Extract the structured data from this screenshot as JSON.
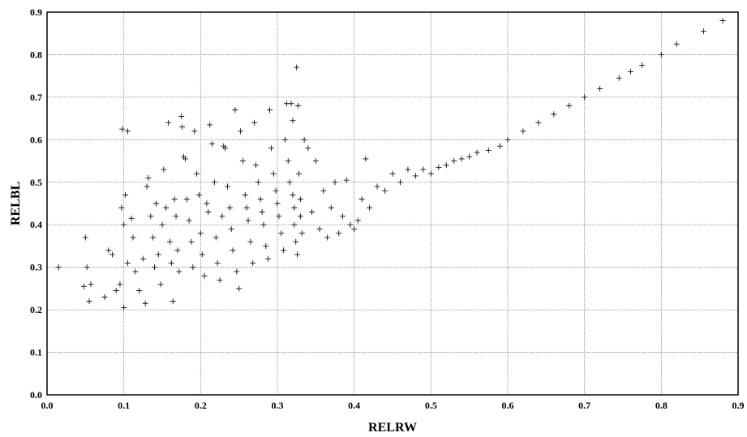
{
  "chart_data": {
    "type": "scatter",
    "title": "",
    "xlabel": "RELRW",
    "ylabel": "RELBL",
    "xlim": [
      0.0,
      0.9
    ],
    "ylim": [
      0.0,
      0.9
    ],
    "xticks": [
      "0.0",
      "0.1",
      "0.2",
      "0.3",
      "0.4",
      "0.5",
      "0.6",
      "0.7",
      "0.8",
      "0.9"
    ],
    "yticks": [
      "0.0",
      "0.1",
      "0.2",
      "0.3",
      "0.4",
      "0.5",
      "0.6",
      "0.7",
      "0.8",
      "0.9"
    ],
    "grid": true,
    "marker": "+",
    "marker_color": "#111111",
    "series": [
      {
        "points": [
          [
            0.015,
            0.3
          ],
          [
            0.048,
            0.255
          ],
          [
            0.05,
            0.37
          ],
          [
            0.052,
            0.3
          ],
          [
            0.055,
            0.22
          ],
          [
            0.057,
            0.26
          ],
          [
            0.075,
            0.23
          ],
          [
            0.08,
            0.34
          ],
          [
            0.085,
            0.33
          ],
          [
            0.09,
            0.245
          ],
          [
            0.095,
            0.26
          ],
          [
            0.097,
            0.44
          ],
          [
            0.1,
            0.205
          ],
          [
            0.1,
            0.4
          ],
          [
            0.102,
            0.47
          ],
          [
            0.105,
            0.62
          ],
          [
            0.098,
            0.625
          ],
          [
            0.105,
            0.31
          ],
          [
            0.11,
            0.415
          ],
          [
            0.112,
            0.37
          ],
          [
            0.115,
            0.29
          ],
          [
            0.12,
            0.245
          ],
          [
            0.125,
            0.32
          ],
          [
            0.128,
            0.215
          ],
          [
            0.13,
            0.49
          ],
          [
            0.132,
            0.51
          ],
          [
            0.135,
            0.42
          ],
          [
            0.138,
            0.37
          ],
          [
            0.14,
            0.3
          ],
          [
            0.142,
            0.45
          ],
          [
            0.145,
            0.33
          ],
          [
            0.148,
            0.26
          ],
          [
            0.15,
            0.4
          ],
          [
            0.152,
            0.53
          ],
          [
            0.155,
            0.44
          ],
          [
            0.158,
            0.64
          ],
          [
            0.16,
            0.36
          ],
          [
            0.162,
            0.31
          ],
          [
            0.164,
            0.22
          ],
          [
            0.166,
            0.46
          ],
          [
            0.168,
            0.42
          ],
          [
            0.17,
            0.34
          ],
          [
            0.172,
            0.29
          ],
          [
            0.175,
            0.655
          ],
          [
            0.176,
            0.63
          ],
          [
            0.178,
            0.56
          ],
          [
            0.18,
            0.555
          ],
          [
            0.182,
            0.46
          ],
          [
            0.185,
            0.41
          ],
          [
            0.188,
            0.36
          ],
          [
            0.19,
            0.3
          ],
          [
            0.192,
            0.62
          ],
          [
            0.195,
            0.52
          ],
          [
            0.198,
            0.47
          ],
          [
            0.2,
            0.38
          ],
          [
            0.202,
            0.33
          ],
          [
            0.205,
            0.28
          ],
          [
            0.208,
            0.45
          ],
          [
            0.21,
            0.43
          ],
          [
            0.212,
            0.635
          ],
          [
            0.215,
            0.59
          ],
          [
            0.218,
            0.5
          ],
          [
            0.22,
            0.37
          ],
          [
            0.222,
            0.31
          ],
          [
            0.225,
            0.27
          ],
          [
            0.228,
            0.42
          ],
          [
            0.23,
            0.585
          ],
          [
            0.232,
            0.58
          ],
          [
            0.235,
            0.49
          ],
          [
            0.238,
            0.44
          ],
          [
            0.24,
            0.39
          ],
          [
            0.242,
            0.34
          ],
          [
            0.245,
            0.67
          ],
          [
            0.247,
            0.29
          ],
          [
            0.25,
            0.25
          ],
          [
            0.252,
            0.62
          ],
          [
            0.255,
            0.55
          ],
          [
            0.258,
            0.47
          ],
          [
            0.26,
            0.44
          ],
          [
            0.262,
            0.41
          ],
          [
            0.265,
            0.36
          ],
          [
            0.268,
            0.31
          ],
          [
            0.27,
            0.64
          ],
          [
            0.272,
            0.54
          ],
          [
            0.275,
            0.5
          ],
          [
            0.278,
            0.46
          ],
          [
            0.28,
            0.43
          ],
          [
            0.282,
            0.4
          ],
          [
            0.285,
            0.35
          ],
          [
            0.288,
            0.32
          ],
          [
            0.29,
            0.67
          ],
          [
            0.292,
            0.58
          ],
          [
            0.295,
            0.52
          ],
          [
            0.298,
            0.48
          ],
          [
            0.3,
            0.45
          ],
          [
            0.302,
            0.42
          ],
          [
            0.305,
            0.38
          ],
          [
            0.308,
            0.34
          ],
          [
            0.31,
            0.6
          ],
          [
            0.312,
            0.685
          ],
          [
            0.314,
            0.55
          ],
          [
            0.316,
            0.5
          ],
          [
            0.318,
            0.685
          ],
          [
            0.32,
            0.645
          ],
          [
            0.32,
            0.47
          ],
          [
            0.322,
            0.44
          ],
          [
            0.322,
            0.4
          ],
          [
            0.324,
            0.36
          ],
          [
            0.325,
            0.77
          ],
          [
            0.326,
            0.33
          ],
          [
            0.327,
            0.68
          ],
          [
            0.328,
            0.52
          ],
          [
            0.33,
            0.46
          ],
          [
            0.33,
            0.42
          ],
          [
            0.332,
            0.38
          ],
          [
            0.335,
            0.6
          ],
          [
            0.34,
            0.58
          ],
          [
            0.345,
            0.43
          ],
          [
            0.35,
            0.55
          ],
          [
            0.355,
            0.39
          ],
          [
            0.36,
            0.48
          ],
          [
            0.365,
            0.37
          ],
          [
            0.37,
            0.44
          ],
          [
            0.375,
            0.5
          ],
          [
            0.38,
            0.38
          ],
          [
            0.385,
            0.42
          ],
          [
            0.39,
            0.505
          ],
          [
            0.395,
            0.4
          ],
          [
            0.4,
            0.39
          ],
          [
            0.405,
            0.41
          ],
          [
            0.41,
            0.46
          ],
          [
            0.415,
            0.555
          ],
          [
            0.42,
            0.44
          ],
          [
            0.43,
            0.49
          ],
          [
            0.44,
            0.48
          ],
          [
            0.45,
            0.52
          ],
          [
            0.46,
            0.5
          ],
          [
            0.47,
            0.53
          ],
          [
            0.48,
            0.515
          ],
          [
            0.49,
            0.53
          ],
          [
            0.5,
            0.52
          ],
          [
            0.51,
            0.535
          ],
          [
            0.52,
            0.54
          ],
          [
            0.53,
            0.55
          ],
          [
            0.54,
            0.555
          ],
          [
            0.55,
            0.56
          ],
          [
            0.56,
            0.57
          ],
          [
            0.575,
            0.575
          ],
          [
            0.59,
            0.585
          ],
          [
            0.6,
            0.6
          ],
          [
            0.62,
            0.62
          ],
          [
            0.64,
            0.64
          ],
          [
            0.66,
            0.66
          ],
          [
            0.68,
            0.68
          ],
          [
            0.7,
            0.7
          ],
          [
            0.72,
            0.72
          ],
          [
            0.745,
            0.745
          ],
          [
            0.76,
            0.76
          ],
          [
            0.775,
            0.775
          ],
          [
            0.8,
            0.8
          ],
          [
            0.82,
            0.825
          ],
          [
            0.855,
            0.855
          ],
          [
            0.88,
            0.88
          ]
        ]
      }
    ]
  }
}
